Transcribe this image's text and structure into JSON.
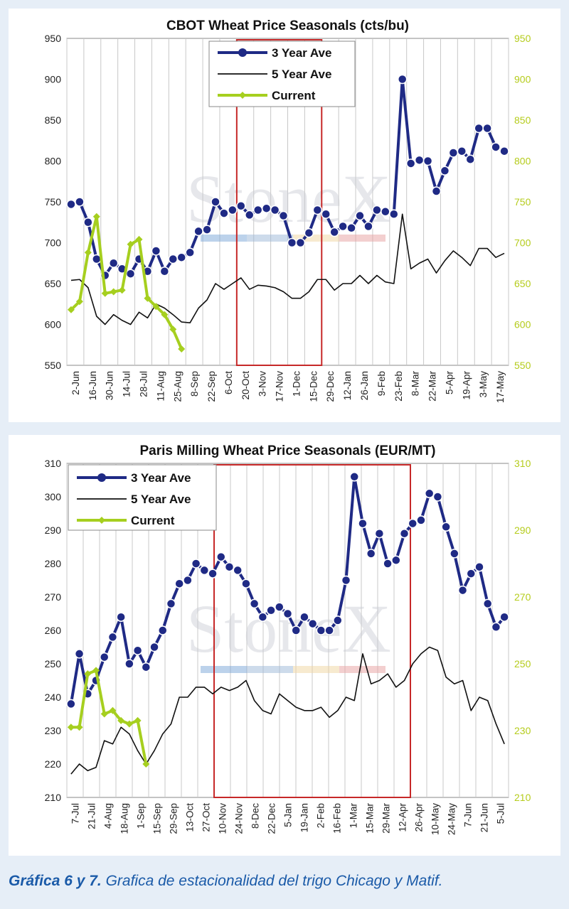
{
  "chart_data": [
    {
      "type": "line",
      "title": "CBOT Wheat Price Seasonals (cts/bu)",
      "ylim": [
        550,
        950
      ],
      "yticks": [
        550,
        600,
        650,
        700,
        750,
        800,
        850,
        900,
        950
      ],
      "secondary_ylim": [
        550,
        950
      ],
      "x_tick_labels": [
        "2-Jun",
        "16-Jun",
        "30-Jun",
        "14-Jul",
        "28-Jul",
        "11-Aug",
        "25-Aug",
        "8-Sep",
        "22-Sep",
        "6-Oct",
        "20-Oct",
        "3-Nov",
        "17-Nov",
        "1-Dec",
        "15-Dec",
        "29-Dec",
        "12-Jan",
        "26-Jan",
        "9-Feb",
        "23-Feb",
        "8-Mar",
        "22-Mar",
        "5-Apr",
        "19-Apr",
        "3-May",
        "17-May"
      ],
      "x_count": 52,
      "grid": "vertical",
      "legend_position": "top-center",
      "highlight_box": [
        10,
        15
      ],
      "watermark": "StoneX",
      "series": [
        {
          "name": "3 Year Ave",
          "color": "#1f2a85",
          "marker": "circle",
          "values": [
            747,
            750,
            725,
            680,
            660,
            675,
            668,
            662,
            680,
            665,
            690,
            665,
            680,
            682,
            688,
            714,
            716,
            750,
            736,
            740,
            745,
            734,
            740,
            742,
            740,
            733,
            700,
            700,
            712,
            740,
            735,
            713,
            720,
            718,
            733,
            720,
            740,
            738,
            735,
            900,
            797,
            801,
            800,
            763,
            788,
            810,
            812,
            802,
            840,
            840,
            817,
            812
          ]
        },
        {
          "name": "5 Year Ave",
          "color": "#111111",
          "marker": "none",
          "values": [
            654,
            655,
            645,
            610,
            600,
            612,
            605,
            600,
            615,
            608,
            625,
            620,
            612,
            603,
            602,
            620,
            630,
            650,
            643,
            650,
            657,
            643,
            648,
            647,
            645,
            640,
            632,
            632,
            640,
            655,
            655,
            642,
            650,
            650,
            660,
            650,
            660,
            652,
            650,
            735,
            668,
            675,
            680,
            663,
            678,
            690,
            682,
            672,
            693,
            693,
            682,
            687
          ]
        },
        {
          "name": "Current",
          "color": "#a6cf1f",
          "marker": "diamond",
          "values": [
            618,
            628,
            688,
            732,
            638,
            640,
            642,
            698,
            704,
            632,
            622,
            612,
            594,
            570
          ]
        }
      ]
    },
    {
      "type": "line",
      "title": "Paris Milling Wheat Price Seasonals (EUR/MT)",
      "ylim": [
        210,
        310
      ],
      "yticks": [
        210,
        220,
        230,
        240,
        250,
        260,
        270,
        280,
        290,
        300,
        310
      ],
      "secondary_ylim": [
        210,
        310
      ],
      "secondary_yticks": [
        210,
        230,
        250,
        270,
        290,
        310
      ],
      "x_tick_labels": [
        "7-Jul",
        "21-Jul",
        "4-Aug",
        "18-Aug",
        "1-Sep",
        "15-Sep",
        "29-Sep",
        "13-Oct",
        "27-Oct",
        "10-Nov",
        "24-Nov",
        "8-Dec",
        "22-Dec",
        "5-Jan",
        "19-Jan",
        "2-Feb",
        "16-Feb",
        "1-Mar",
        "15-Mar",
        "29-Mar",
        "12-Apr",
        "26-Apr",
        "10-May",
        "24-May",
        "7-Jun",
        "21-Jun",
        "5-Jul"
      ],
      "x_count": 53,
      "grid": "vertical",
      "legend_position": "top-left",
      "highlight_box": [
        9,
        21
      ],
      "watermark": "StoneX",
      "series": [
        {
          "name": "3 Year Ave",
          "color": "#1f2a85",
          "marker": "circle",
          "values": [
            238,
            253,
            241,
            245,
            252,
            258,
            264,
            250,
            254,
            249,
            255,
            260,
            268,
            274,
            275,
            280,
            278,
            277,
            282,
            279,
            278,
            274,
            268,
            264,
            266,
            267,
            265,
            260,
            264,
            262,
            260,
            260,
            263,
            275,
            306,
            292,
            283,
            289,
            280,
            281,
            289,
            292,
            293,
            301,
            300,
            291,
            283,
            272,
            277,
            279,
            268,
            261,
            264
          ]
        },
        {
          "name": "5 Year Ave",
          "color": "#111111",
          "marker": "none",
          "values": [
            217,
            220,
            218,
            219,
            227,
            226,
            231,
            229,
            224,
            220,
            224,
            229,
            232,
            240,
            240,
            243,
            243,
            241,
            243,
            242,
            243,
            245,
            239,
            236,
            235,
            241,
            239,
            237,
            236,
            236,
            237,
            234,
            236,
            240,
            239,
            253,
            244,
            245,
            247,
            243,
            245,
            250,
            253,
            255,
            254,
            246,
            244,
            245,
            236,
            240,
            239,
            232,
            226
          ]
        },
        {
          "name": "Current",
          "color": "#a6cf1f",
          "marker": "diamond",
          "values": [
            231,
            231,
            247,
            248,
            235,
            236,
            233,
            232,
            233,
            220
          ]
        }
      ]
    }
  ],
  "caption": {
    "bold": "Gráfica 6 y 7.",
    "text": " Grafica de estacionalidad del trigo Chicago y Matif."
  }
}
